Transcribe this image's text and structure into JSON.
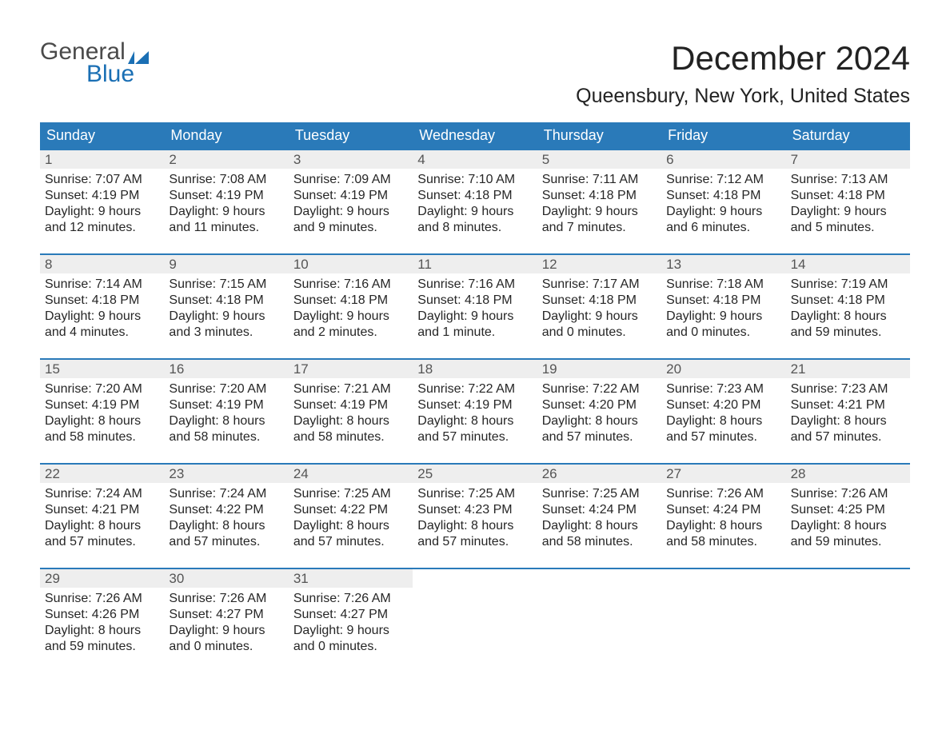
{
  "brand": {
    "line1": "General",
    "line2": "Blue",
    "color_gray": "#4a4a4a",
    "color_blue": "#1a6fb4"
  },
  "title": "December 2024",
  "location": "Queensbury, New York, United States",
  "colors": {
    "header_bg": "#2a7ab9",
    "header_text": "#ffffff",
    "daynum_bg": "#eeeeee",
    "daynum_text": "#555555",
    "body_text": "#262626",
    "week_border": "#2a7ab9",
    "page_bg": "#ffffff"
  },
  "day_names": [
    "Sunday",
    "Monday",
    "Tuesday",
    "Wednesday",
    "Thursday",
    "Friday",
    "Saturday"
  ],
  "weeks": [
    [
      {
        "n": "1",
        "sr": "Sunrise: 7:07 AM",
        "ss": "Sunset: 4:19 PM",
        "d1": "Daylight: 9 hours",
        "d2": "and 12 minutes."
      },
      {
        "n": "2",
        "sr": "Sunrise: 7:08 AM",
        "ss": "Sunset: 4:19 PM",
        "d1": "Daylight: 9 hours",
        "d2": "and 11 minutes."
      },
      {
        "n": "3",
        "sr": "Sunrise: 7:09 AM",
        "ss": "Sunset: 4:19 PM",
        "d1": "Daylight: 9 hours",
        "d2": "and 9 minutes."
      },
      {
        "n": "4",
        "sr": "Sunrise: 7:10 AM",
        "ss": "Sunset: 4:18 PM",
        "d1": "Daylight: 9 hours",
        "d2": "and 8 minutes."
      },
      {
        "n": "5",
        "sr": "Sunrise: 7:11 AM",
        "ss": "Sunset: 4:18 PM",
        "d1": "Daylight: 9 hours",
        "d2": "and 7 minutes."
      },
      {
        "n": "6",
        "sr": "Sunrise: 7:12 AM",
        "ss": "Sunset: 4:18 PM",
        "d1": "Daylight: 9 hours",
        "d2": "and 6 minutes."
      },
      {
        "n": "7",
        "sr": "Sunrise: 7:13 AM",
        "ss": "Sunset: 4:18 PM",
        "d1": "Daylight: 9 hours",
        "d2": "and 5 minutes."
      }
    ],
    [
      {
        "n": "8",
        "sr": "Sunrise: 7:14 AM",
        "ss": "Sunset: 4:18 PM",
        "d1": "Daylight: 9 hours",
        "d2": "and 4 minutes."
      },
      {
        "n": "9",
        "sr": "Sunrise: 7:15 AM",
        "ss": "Sunset: 4:18 PM",
        "d1": "Daylight: 9 hours",
        "d2": "and 3 minutes."
      },
      {
        "n": "10",
        "sr": "Sunrise: 7:16 AM",
        "ss": "Sunset: 4:18 PM",
        "d1": "Daylight: 9 hours",
        "d2": "and 2 minutes."
      },
      {
        "n": "11",
        "sr": "Sunrise: 7:16 AM",
        "ss": "Sunset: 4:18 PM",
        "d1": "Daylight: 9 hours",
        "d2": "and 1 minute."
      },
      {
        "n": "12",
        "sr": "Sunrise: 7:17 AM",
        "ss": "Sunset: 4:18 PM",
        "d1": "Daylight: 9 hours",
        "d2": "and 0 minutes."
      },
      {
        "n": "13",
        "sr": "Sunrise: 7:18 AM",
        "ss": "Sunset: 4:18 PM",
        "d1": "Daylight: 9 hours",
        "d2": "and 0 minutes."
      },
      {
        "n": "14",
        "sr": "Sunrise: 7:19 AM",
        "ss": "Sunset: 4:18 PM",
        "d1": "Daylight: 8 hours",
        "d2": "and 59 minutes."
      }
    ],
    [
      {
        "n": "15",
        "sr": "Sunrise: 7:20 AM",
        "ss": "Sunset: 4:19 PM",
        "d1": "Daylight: 8 hours",
        "d2": "and 58 minutes."
      },
      {
        "n": "16",
        "sr": "Sunrise: 7:20 AM",
        "ss": "Sunset: 4:19 PM",
        "d1": "Daylight: 8 hours",
        "d2": "and 58 minutes."
      },
      {
        "n": "17",
        "sr": "Sunrise: 7:21 AM",
        "ss": "Sunset: 4:19 PM",
        "d1": "Daylight: 8 hours",
        "d2": "and 58 minutes."
      },
      {
        "n": "18",
        "sr": "Sunrise: 7:22 AM",
        "ss": "Sunset: 4:19 PM",
        "d1": "Daylight: 8 hours",
        "d2": "and 57 minutes."
      },
      {
        "n": "19",
        "sr": "Sunrise: 7:22 AM",
        "ss": "Sunset: 4:20 PM",
        "d1": "Daylight: 8 hours",
        "d2": "and 57 minutes."
      },
      {
        "n": "20",
        "sr": "Sunrise: 7:23 AM",
        "ss": "Sunset: 4:20 PM",
        "d1": "Daylight: 8 hours",
        "d2": "and 57 minutes."
      },
      {
        "n": "21",
        "sr": "Sunrise: 7:23 AM",
        "ss": "Sunset: 4:21 PM",
        "d1": "Daylight: 8 hours",
        "d2": "and 57 minutes."
      }
    ],
    [
      {
        "n": "22",
        "sr": "Sunrise: 7:24 AM",
        "ss": "Sunset: 4:21 PM",
        "d1": "Daylight: 8 hours",
        "d2": "and 57 minutes."
      },
      {
        "n": "23",
        "sr": "Sunrise: 7:24 AM",
        "ss": "Sunset: 4:22 PM",
        "d1": "Daylight: 8 hours",
        "d2": "and 57 minutes."
      },
      {
        "n": "24",
        "sr": "Sunrise: 7:25 AM",
        "ss": "Sunset: 4:22 PM",
        "d1": "Daylight: 8 hours",
        "d2": "and 57 minutes."
      },
      {
        "n": "25",
        "sr": "Sunrise: 7:25 AM",
        "ss": "Sunset: 4:23 PM",
        "d1": "Daylight: 8 hours",
        "d2": "and 57 minutes."
      },
      {
        "n": "26",
        "sr": "Sunrise: 7:25 AM",
        "ss": "Sunset: 4:24 PM",
        "d1": "Daylight: 8 hours",
        "d2": "and 58 minutes."
      },
      {
        "n": "27",
        "sr": "Sunrise: 7:26 AM",
        "ss": "Sunset: 4:24 PM",
        "d1": "Daylight: 8 hours",
        "d2": "and 58 minutes."
      },
      {
        "n": "28",
        "sr": "Sunrise: 7:26 AM",
        "ss": "Sunset: 4:25 PM",
        "d1": "Daylight: 8 hours",
        "d2": "and 59 minutes."
      }
    ],
    [
      {
        "n": "29",
        "sr": "Sunrise: 7:26 AM",
        "ss": "Sunset: 4:26 PM",
        "d1": "Daylight: 8 hours",
        "d2": "and 59 minutes."
      },
      {
        "n": "30",
        "sr": "Sunrise: 7:26 AM",
        "ss": "Sunset: 4:27 PM",
        "d1": "Daylight: 9 hours",
        "d2": "and 0 minutes."
      },
      {
        "n": "31",
        "sr": "Sunrise: 7:26 AM",
        "ss": "Sunset: 4:27 PM",
        "d1": "Daylight: 9 hours",
        "d2": "and 0 minutes."
      },
      {
        "empty": true
      },
      {
        "empty": true
      },
      {
        "empty": true
      },
      {
        "empty": true
      }
    ]
  ]
}
